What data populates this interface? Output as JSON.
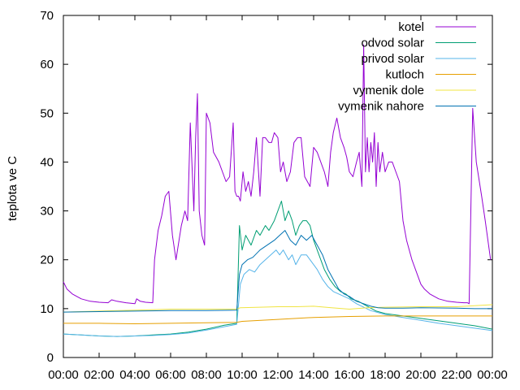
{
  "chart_data": {
    "type": "line",
    "title": "",
    "xlabel": "",
    "ylabel": "teplota ve C",
    "ylim": [
      0,
      70
    ],
    "xlim": [
      0,
      24
    ],
    "yticks": [
      0,
      10,
      20,
      30,
      40,
      50,
      60,
      70
    ],
    "xticks": [
      0,
      2,
      4,
      6,
      8,
      10,
      12,
      14,
      16,
      18,
      20,
      22,
      24
    ],
    "xtick_labels": [
      "00:00",
      "02:00",
      "04:00",
      "06:00",
      "08:00",
      "10:00",
      "12:00",
      "14:00",
      "16:00",
      "18:00",
      "20:00",
      "22:00",
      "00:00"
    ],
    "grid": false,
    "legend": "top-right",
    "series": [
      {
        "name": "kotel",
        "color": "#9400d3",
        "x": [
          0,
          0.2,
          0.5,
          1,
          1.5,
          2,
          2.5,
          2.7,
          3,
          3.5,
          4,
          4.1,
          4.3,
          4.6,
          5,
          5.1,
          5.3,
          5.5,
          5.7,
          5.9,
          6.1,
          6.3,
          6.6,
          6.8,
          6.95,
          7.1,
          7.3,
          7.4,
          7.5,
          7.6,
          7.75,
          7.9,
          8,
          8.2,
          8.4,
          8.7,
          8.9,
          9.1,
          9.3,
          9.5,
          9.6,
          9.7,
          9.8,
          9.9,
          10.05,
          10.2,
          10.35,
          10.5,
          10.65,
          10.8,
          11,
          11.15,
          11.3,
          11.5,
          11.65,
          11.8,
          12,
          12.15,
          12.3,
          12.5,
          12.7,
          12.9,
          13.1,
          13.3,
          13.5,
          13.65,
          13.8,
          14,
          14.2,
          14.4,
          14.6,
          14.8,
          14.95,
          15.1,
          15.3,
          15.5,
          15.7,
          15.85,
          16,
          16.2,
          16.4,
          16.55,
          16.7,
          16.8,
          16.9,
          17,
          17.1,
          17.2,
          17.3,
          17.4,
          17.5,
          17.6,
          17.7,
          17.85,
          18,
          18.2,
          18.4,
          18.6,
          18.8,
          19,
          19.2,
          19.5,
          19.8,
          20,
          20.2,
          20.5,
          21,
          21.5,
          22,
          22.4,
          22.6,
          22.7,
          22.9,
          23.1,
          23.4,
          23.6,
          23.75,
          23.9
        ],
        "values": [
          15.5,
          14,
          13,
          12,
          11.5,
          11.3,
          11.2,
          11.8,
          11.5,
          11.2,
          11,
          12,
          11.5,
          11.3,
          11.2,
          20,
          26,
          29,
          33,
          34,
          25,
          20,
          27,
          30,
          28,
          48,
          30,
          45,
          54,
          30,
          25,
          23,
          50,
          48,
          42,
          40,
          38,
          36,
          37,
          48,
          34,
          33,
          33,
          32,
          38,
          34,
          36,
          33,
          38,
          45,
          33,
          45,
          45,
          44,
          44,
          46,
          45,
          38,
          40,
          36,
          38,
          44,
          45,
          45,
          37,
          36,
          35,
          43,
          42,
          40,
          38,
          35,
          42,
          46,
          49,
          45,
          43,
          41,
          38,
          37,
          40,
          42,
          35,
          64,
          38,
          45,
          38,
          44,
          40,
          46,
          35,
          44,
          38,
          42,
          38,
          40,
          40,
          38,
          36,
          28,
          24,
          20,
          17,
          15,
          14,
          13,
          12,
          11.5,
          11.3,
          11.2,
          11.2,
          11,
          51,
          40,
          33,
          28,
          24,
          20
        ]
      },
      {
        "name": "odvod solar",
        "color": "#009e73",
        "x": [
          0,
          1,
          2,
          3,
          4,
          5,
          6,
          7,
          8,
          9,
          9.7,
          9.85,
          10,
          10.2,
          10.5,
          10.8,
          11,
          11.3,
          11.5,
          11.8,
          12,
          12.2,
          12.4,
          12.6,
          12.8,
          13,
          13.2,
          13.4,
          13.6,
          13.8,
          14,
          14.3,
          14.6,
          14.9,
          15.2,
          15.5,
          15.8,
          16.1,
          16.5,
          17,
          17.5,
          18,
          19,
          20,
          21,
          22,
          23,
          24
        ],
        "values": [
          4.8,
          4.6,
          4.4,
          4.3,
          4.4,
          4.6,
          4.8,
          5.2,
          5.8,
          6.6,
          7,
          27,
          22,
          25,
          23,
          26,
          25,
          27,
          26,
          28,
          30,
          32,
          28,
          30,
          28,
          25,
          27,
          28,
          28,
          27,
          24,
          21,
          18,
          16,
          14.5,
          13.5,
          13,
          12,
          11.5,
          10.5,
          9.5,
          9,
          8.5,
          8,
          7.5,
          7,
          6.5,
          5.8
        ]
      },
      {
        "name": "privod solar",
        "color": "#56b4e9",
        "x": [
          0,
          1,
          2,
          3,
          4,
          5,
          6,
          7,
          8,
          9,
          9.7,
          9.9,
          10.1,
          10.4,
          10.7,
          11,
          11.3,
          11.6,
          11.9,
          12.1,
          12.3,
          12.6,
          12.8,
          13,
          13.3,
          13.6,
          13.9,
          14.2,
          14.5,
          14.8,
          15.1,
          15.4,
          15.7,
          16,
          16.4,
          16.8,
          17.2,
          17.6,
          18,
          19,
          20,
          21,
          22,
          23,
          24
        ],
        "values": [
          4.8,
          4.6,
          4.4,
          4.3,
          4.4,
          4.5,
          4.7,
          5,
          5.6,
          6.3,
          6.8,
          15,
          17,
          18,
          17.5,
          19,
          20,
          21,
          22,
          21,
          22,
          20,
          21,
          19,
          21,
          21,
          19.5,
          18,
          16,
          14.5,
          13.5,
          13,
          12.5,
          12,
          11,
          10.3,
          9.6,
          9.2,
          8.8,
          8.2,
          7.6,
          7,
          6.5,
          6,
          5.5
        ]
      },
      {
        "name": "kutloch",
        "color": "#e69f00",
        "x": [
          0,
          2,
          4,
          6,
          8,
          9.7,
          10,
          12,
          14,
          16,
          18,
          20,
          22,
          24
        ],
        "values": [
          7,
          7,
          6.9,
          7,
          7.1,
          7.2,
          7.4,
          7.8,
          8.2,
          8.4,
          8.5,
          8.5,
          8.5,
          8.5
        ]
      },
      {
        "name": "vymenik dole",
        "color": "#f0e442",
        "x": [
          0,
          2,
          4,
          6,
          8,
          9.7,
          9.9,
          11,
          12,
          13,
          14,
          15,
          16,
          17,
          18,
          20,
          22,
          23,
          24
        ],
        "values": [
          9.3,
          9.5,
          9.7,
          9.9,
          9.9,
          9.9,
          10.2,
          10.3,
          10.4,
          10.4,
          10.5,
          10.2,
          9.9,
          10.2,
          10.3,
          10.4,
          10.4,
          10.6,
          10.8
        ]
      },
      {
        "name": "vymenik nahore",
        "color": "#0072b2",
        "x": [
          0,
          2,
          4,
          6,
          8,
          9.7,
          9.85,
          10,
          10.3,
          10.6,
          11,
          11.4,
          11.8,
          12.1,
          12.4,
          12.7,
          13,
          13.3,
          13.6,
          13.9,
          14.2,
          14.5,
          14.8,
          15.1,
          15.4,
          15.7,
          16,
          16.4,
          16.8,
          17.2,
          17.6,
          18,
          19,
          20,
          22,
          23,
          24
        ],
        "values": [
          9.3,
          9.4,
          9.5,
          9.6,
          9.6,
          9.7,
          17,
          19,
          20,
          20.5,
          22,
          23,
          24,
          25,
          26,
          24,
          23,
          25,
          24,
          25,
          23,
          21,
          18,
          16,
          14,
          13,
          12.5,
          11.5,
          11,
          10.5,
          10.2,
          10.1,
          10.1,
          10.2,
          10.1,
          10,
          10
        ]
      }
    ]
  }
}
